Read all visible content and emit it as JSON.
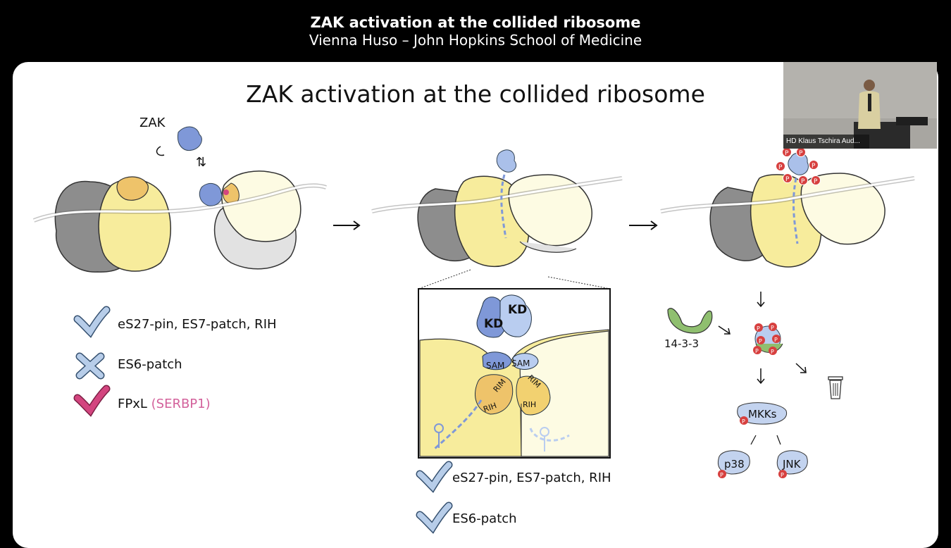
{
  "header": {
    "title": "ZAK activation at the collided ribosome",
    "subtitle": "Vienna Huso – John Hopkins School of Medicine"
  },
  "slide": {
    "title": "ZAK activation at the collided ribosome",
    "zak_label": "ZAK",
    "left_legend": {
      "item1": "eS27-pin, ES7-patch, RIH",
      "item2": "ES6-patch",
      "item3_prefix": "FPxL ",
      "item3_paren": "(SERBP1)"
    },
    "inset": {
      "kd1": "KD",
      "kd2": "KD",
      "sam1": "SAM",
      "sam2": "SAM",
      "rim1": "RIM",
      "rim2": "RIM",
      "rih1": "RIH",
      "rih2": "RIH"
    },
    "center_legend": {
      "item1": "eS27-pin, ES7-patch, RIH",
      "item2": "ES6-patch"
    },
    "pathway": {
      "protein_1433": "14-3-3",
      "mkks": "MKKs",
      "p38": "p38",
      "jnk": "JNK",
      "phospho": "P"
    },
    "colors": {
      "check_blue": "#b7cde9",
      "check_pink": "#d3457f",
      "ribosome_grey": "#8c8c8c",
      "ribosome_yellow": "#f7ec9c",
      "zak_blue": "#7f98d8",
      "phospho_red": "#d7403f"
    }
  },
  "camera": {
    "tag": "HD Klaus Tschira Aud..."
  }
}
